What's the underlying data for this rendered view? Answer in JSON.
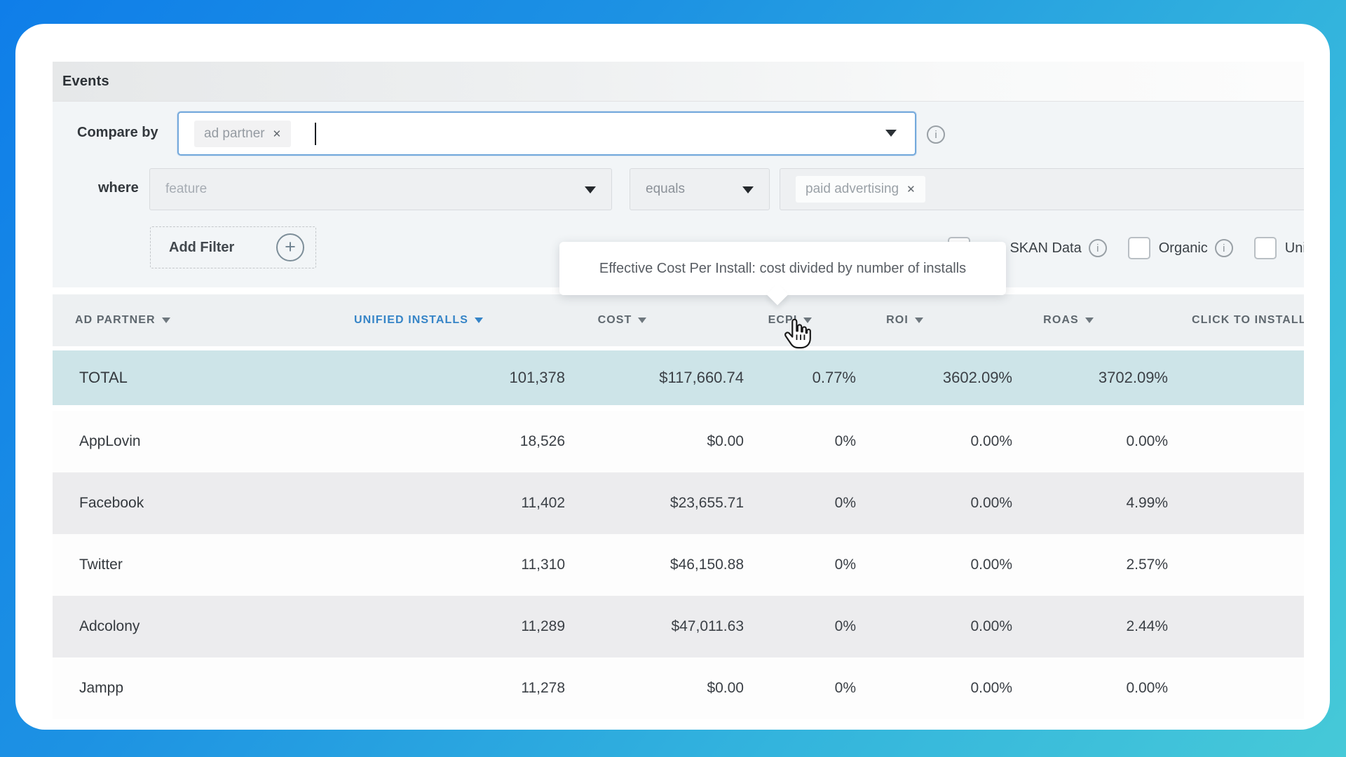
{
  "window": {
    "title": "Events"
  },
  "filters": {
    "compare_by_label": "Compare by",
    "compare_by_selected": "ad partner",
    "where_label": "where",
    "field_placeholder": "feature",
    "operator_value": "equals",
    "filter_value": "paid advertising",
    "add_filter_label": "Add Filter"
  },
  "checkboxes": [
    {
      "label": "Split SKAN Data",
      "checked": false,
      "has_info": true
    },
    {
      "label": "Organic",
      "checked": false,
      "has_info": true
    },
    {
      "label": "Unified",
      "checked": false,
      "has_info": false
    }
  ],
  "tooltip": {
    "text": "Effective Cost Per Install: cost divided by number of installs"
  },
  "table": {
    "columns": [
      "AD PARTNER",
      "UNIFIED INSTALLS",
      "COST",
      "ECPI",
      "ROI",
      "ROAS",
      "CLICK TO INSTALL"
    ],
    "sorted_column": "UNIFIED INSTALLS",
    "total_row": [
      "TOTAL",
      "101,378",
      "$117,660.74",
      "0.77%",
      "3602.09%",
      "3702.09%",
      ""
    ],
    "rows": [
      [
        "AppLovin",
        "18,526",
        "$0.00",
        "0%",
        "0.00%",
        "0.00%",
        ""
      ],
      [
        "Facebook",
        "11,402",
        "$23,655.71",
        "0%",
        "0.00%",
        "4.99%",
        ""
      ],
      [
        "Twitter",
        "11,310",
        "$46,150.88",
        "0%",
        "0.00%",
        "2.57%",
        ""
      ],
      [
        "Adcolony",
        "11,289",
        "$47,011.63",
        "0%",
        "0.00%",
        "2.44%",
        ""
      ],
      [
        "Jampp",
        "11,278",
        "$0.00",
        "0%",
        "0.00%",
        "0.00%",
        ""
      ]
    ]
  },
  "icons": {
    "close": "✕",
    "plus": "+",
    "info": "i"
  },
  "colors": {
    "accent_blue": "#3584c7",
    "focus_border": "#74a9dc",
    "total_row_bg": "#cde4e8"
  }
}
